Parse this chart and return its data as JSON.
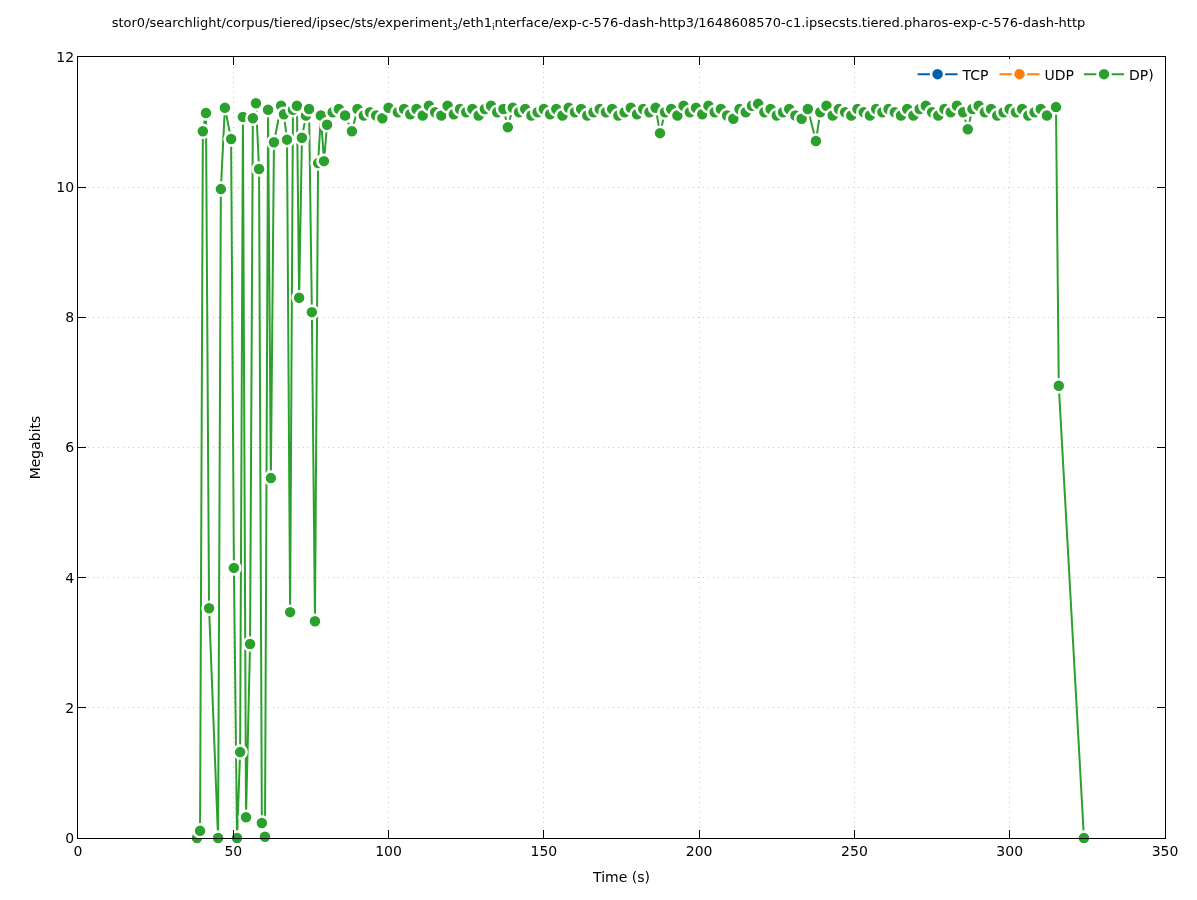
{
  "chart_data": {
    "type": "line",
    "title": "stor0/searchlight/corpus/tiered/ipsec/sts/experiment$_{3}$/eth1$_{i}$nterface/exp-c-576-dash-http3/1648608570-c1.ipsecsts.tiered.pharos-exp-c-576-dash-http",
    "xlabel": "Time (s)",
    "ylabel": "Megabits",
    "xlim": [
      0,
      350
    ],
    "xticks": [
      0,
      50,
      100,
      150,
      200,
      250,
      300,
      350
    ],
    "ylim": [
      0,
      12
    ],
    "yticks": [
      0,
      2,
      4,
      6,
      8,
      10,
      12
    ],
    "grid": true,
    "legend": "top right",
    "marker": "circle",
    "line_style": "solid",
    "series": [
      {
        "name": "TCP",
        "color": "#0060ad"
      },
      {
        "name": "UDP",
        "color": "#ff7f0e"
      },
      {
        "name": "DP)",
        "color": "#2ca02c",
        "x": [
          38.3,
          39.3,
          40.2,
          41.2,
          42.2,
          45.1,
          46.0,
          47.3,
          49.3,
          50.2,
          51.2,
          52.2,
          53.1,
          54.1,
          55.4,
          56.3,
          57.3,
          58.3,
          59.2,
          60.2,
          61.2,
          62.1,
          63.1,
          65.4,
          66.3,
          67.3,
          68.3,
          69.2,
          70.5,
          71.2,
          72.1,
          73.4,
          74.4,
          75.3,
          76.3,
          77.3,
          78.2,
          79.2,
          80.2,
          82,
          84,
          86,
          88.2,
          90,
          92,
          94,
          96,
          98,
          100,
          103,
          105,
          107,
          109,
          111,
          113,
          115,
          117,
          119,
          121,
          123,
          125,
          127,
          129,
          131,
          133,
          135,
          137,
          138.4,
          140,
          142,
          144,
          146,
          148,
          150,
          152,
          154,
          156,
          158,
          160,
          162,
          164,
          166,
          168,
          170,
          172,
          174,
          176,
          178,
          180,
          182,
          184,
          186,
          187.4,
          189,
          191,
          193,
          195,
          197,
          199,
          201,
          203,
          205,
          207,
          209,
          211,
          213,
          215,
          217,
          219,
          221,
          223,
          225,
          227,
          229,
          231,
          233,
          235,
          237.6,
          239,
          241,
          243,
          245,
          247,
          249,
          251,
          253,
          255,
          257,
          259,
          261,
          263,
          265,
          267,
          269,
          271,
          273,
          275,
          277,
          279,
          281,
          283,
          285,
          286.5,
          288,
          290,
          292,
          294,
          296,
          298,
          300,
          302,
          304,
          306,
          308,
          310,
          312,
          314.9,
          315.8,
          323.9
        ],
        "values": [
          0,
          0.11,
          10.86,
          11.14,
          3.53,
          0,
          9.97,
          11.22,
          10.74,
          4.15,
          0,
          1.32,
          11.08,
          0.32,
          2.98,
          11.06,
          11.29,
          10.28,
          0.23,
          0.02,
          11.19,
          5.53,
          10.69,
          11.25,
          11.12,
          10.73,
          3.47,
          11.19,
          11.25,
          8.3,
          10.76,
          11.1,
          11.2,
          8.08,
          3.33,
          10.37,
          11.1,
          10.4,
          10.96,
          11.15,
          11.2,
          11.1,
          10.86,
          11.2,
          11.1,
          11.15,
          11.1,
          11.06,
          11.22,
          11.15,
          11.2,
          11.12,
          11.2,
          11.1,
          11.25,
          11.15,
          11.1,
          11.25,
          11.12,
          11.2,
          11.15,
          11.2,
          11.1,
          11.2,
          11.25,
          11.15,
          11.2,
          10.92,
          11.22,
          11.15,
          11.2,
          11.1,
          11.15,
          11.2,
          11.12,
          11.2,
          11.1,
          11.22,
          11.15,
          11.2,
          11.1,
          11.15,
          11.2,
          11.15,
          11.2,
          11.1,
          11.15,
          11.22,
          11.12,
          11.2,
          11.15,
          11.22,
          10.83,
          11.15,
          11.2,
          11.1,
          11.25,
          11.15,
          11.22,
          11.12,
          11.25,
          11.15,
          11.2,
          11.1,
          11.05,
          11.2,
          11.15,
          11.25,
          11.28,
          11.15,
          11.2,
          11.1,
          11.15,
          11.2,
          11.1,
          11.05,
          11.2,
          10.71,
          11.15,
          11.25,
          11.1,
          11.2,
          11.15,
          11.1,
          11.2,
          11.15,
          11.1,
          11.2,
          11.15,
          11.2,
          11.15,
          11.1,
          11.2,
          11.1,
          11.2,
          11.25,
          11.15,
          11.1,
          11.2,
          11.15,
          11.25,
          11.15,
          10.89,
          11.2,
          11.25,
          11.15,
          11.2,
          11.1,
          11.15,
          11.2,
          11.15,
          11.2,
          11.1,
          11.15,
          11.2,
          11.1,
          11.23,
          6.95,
          0
        ]
      }
    ]
  }
}
